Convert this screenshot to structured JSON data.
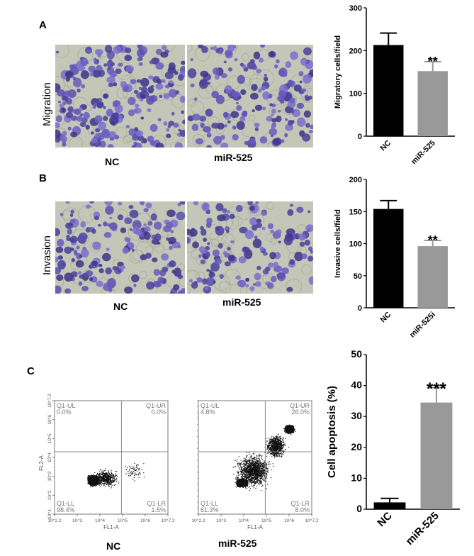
{
  "panels": {
    "A": {
      "letter": "A",
      "row_label": "Migration",
      "image_captions": [
        "NC",
        "miR-525"
      ]
    },
    "B": {
      "letter": "B",
      "row_label": "Invasion",
      "image_captions": [
        "NC",
        "miR-525"
      ]
    },
    "C": {
      "letter": "C",
      "flow_captions": [
        "NC",
        "miR-525"
      ],
      "flow": [
        {
          "quadrants": {
            "ul": "Q1-UL",
            "ur": "Q1-UR",
            "ll": "Q1-LL",
            "lr": "Q1-LR"
          },
          "percents": {
            "ul": "0.0%",
            "ur": "0.0%",
            "ll": "98.4%",
            "lr": "1.5%"
          }
        },
        {
          "quadrants": {
            "ul": "Q1-UL",
            "ur": "Q1-UR",
            "ll": "Q1-LL",
            "lr": "Q1-LR"
          },
          "percents": {
            "ul": "4.8%",
            "ur": "26.0%",
            "ll": "61.3%",
            "lr": "8.0%"
          }
        }
      ],
      "flow_axes": {
        "x_label": "FL1-A",
        "y_label": "FL2-A",
        "x_ticks": [
          "10^2.2",
          "10^3",
          "10^4",
          "10^5",
          "10^6",
          "10^7.2"
        ],
        "y_ticks": [
          "10^1",
          "10^2",
          "10^3",
          "10^4",
          "10^5",
          "10^6",
          "10^7.2"
        ]
      }
    }
  },
  "chart_data": [
    {
      "type": "bar",
      "categories": [
        "NC",
        "miR-525"
      ],
      "values": [
        213,
        152
      ],
      "errors": [
        28,
        22
      ],
      "significance": [
        "",
        "**"
      ],
      "title": "",
      "xlabel": "",
      "ylabel": "Migratory cells/field",
      "ylim": [
        0,
        300
      ],
      "yticks": [
        0,
        100,
        200,
        300
      ],
      "colors": [
        "#000000",
        "#999999"
      ]
    },
    {
      "type": "bar",
      "categories": [
        "NC",
        "miR-525i"
      ],
      "values": [
        154,
        96
      ],
      "errors": [
        13,
        9
      ],
      "significance": [
        "",
        "**"
      ],
      "title": "",
      "xlabel": "",
      "ylabel": "Invasive cells/field",
      "ylim": [
        0,
        200
      ],
      "yticks": [
        0,
        50,
        100,
        150,
        200
      ],
      "colors": [
        "#000000",
        "#999999"
      ]
    },
    {
      "type": "bar",
      "categories": [
        "NC",
        "miR-525"
      ],
      "values": [
        2.2,
        34.5
      ],
      "errors": [
        1.3,
        4.8
      ],
      "significance": [
        "",
        "***"
      ],
      "title": "",
      "xlabel": "",
      "ylabel": "Cell apoptosis (%)",
      "ylim": [
        0,
        50
      ],
      "yticks": [
        0,
        10,
        20,
        30,
        40,
        50
      ],
      "colors": [
        "#000000",
        "#999999"
      ]
    }
  ]
}
